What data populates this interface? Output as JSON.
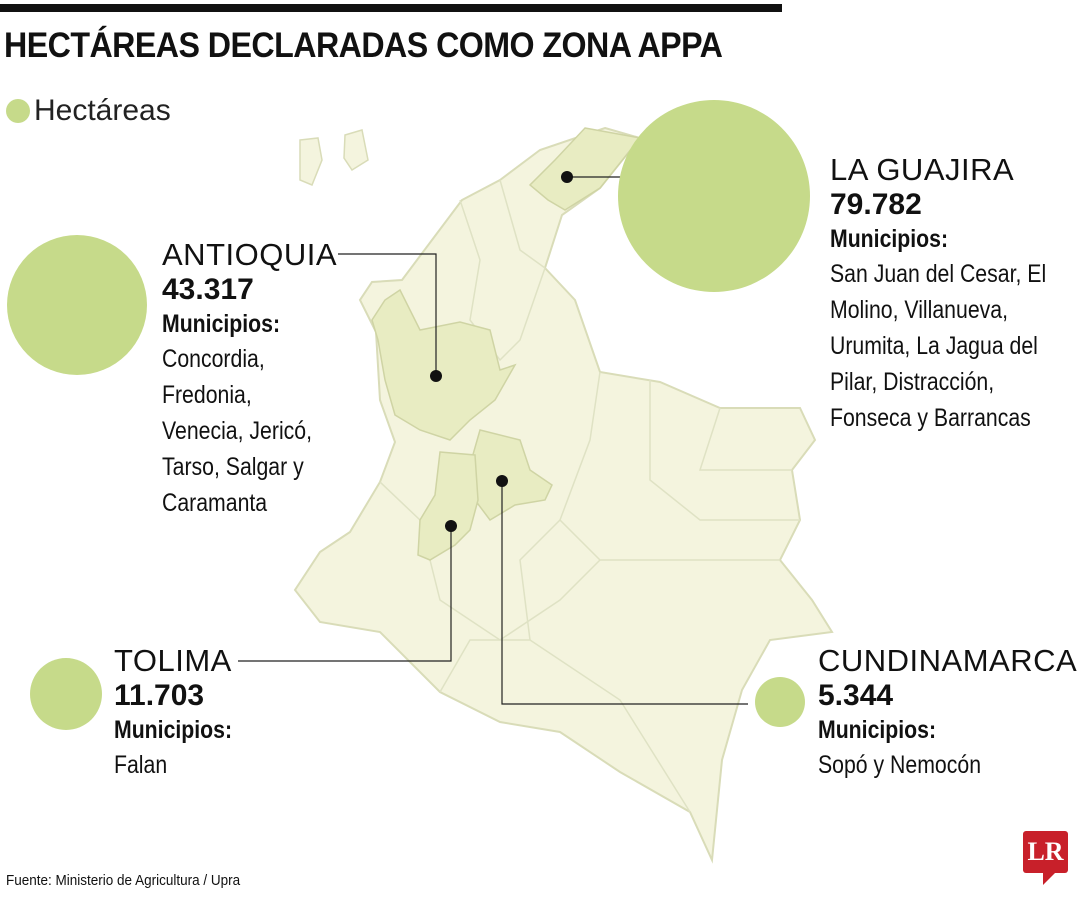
{
  "title": "HECTÁREAS DECLARADAS COMO ZONA APPA",
  "legend": {
    "label": "Hectáreas",
    "color": "#c6da8a"
  },
  "colors": {
    "bubble": "#c6da8a",
    "map_fill": "#f4f4de",
    "map_highlight": "#e8ecc2",
    "map_stroke": "#d9dcb8",
    "logo": "#c8202a"
  },
  "departments": [
    {
      "name": "LA GUAJIRA",
      "value": "79.782",
      "municipios_label": "Municipios:",
      "municipios": [
        "San Juan del Cesar, El",
        "Molino, Villanueva,",
        "Urumita, La Jagua del",
        "Pilar, Distracción,",
        "Fonseca y Barrancas"
      ]
    },
    {
      "name": "ANTIOQUIA",
      "value": "43.317",
      "municipios_label": "Municipios:",
      "municipios": [
        "Concordia,",
        "Fredonia,",
        "Venecia, Jericó,",
        "Tarso, Salgar y",
        "Caramanta"
      ]
    },
    {
      "name": "TOLIMA",
      "value": "11.703",
      "municipios_label": "Municipios:",
      "municipios": [
        "Falan"
      ]
    },
    {
      "name": "CUNDINAMARCA",
      "value": "5.344",
      "municipios_label": "Municipios:",
      "municipios": [
        "Sopó y Nemocón"
      ]
    }
  ],
  "source": "Fuente: Ministerio de Agricultura  / Upra",
  "logo": "LR"
}
